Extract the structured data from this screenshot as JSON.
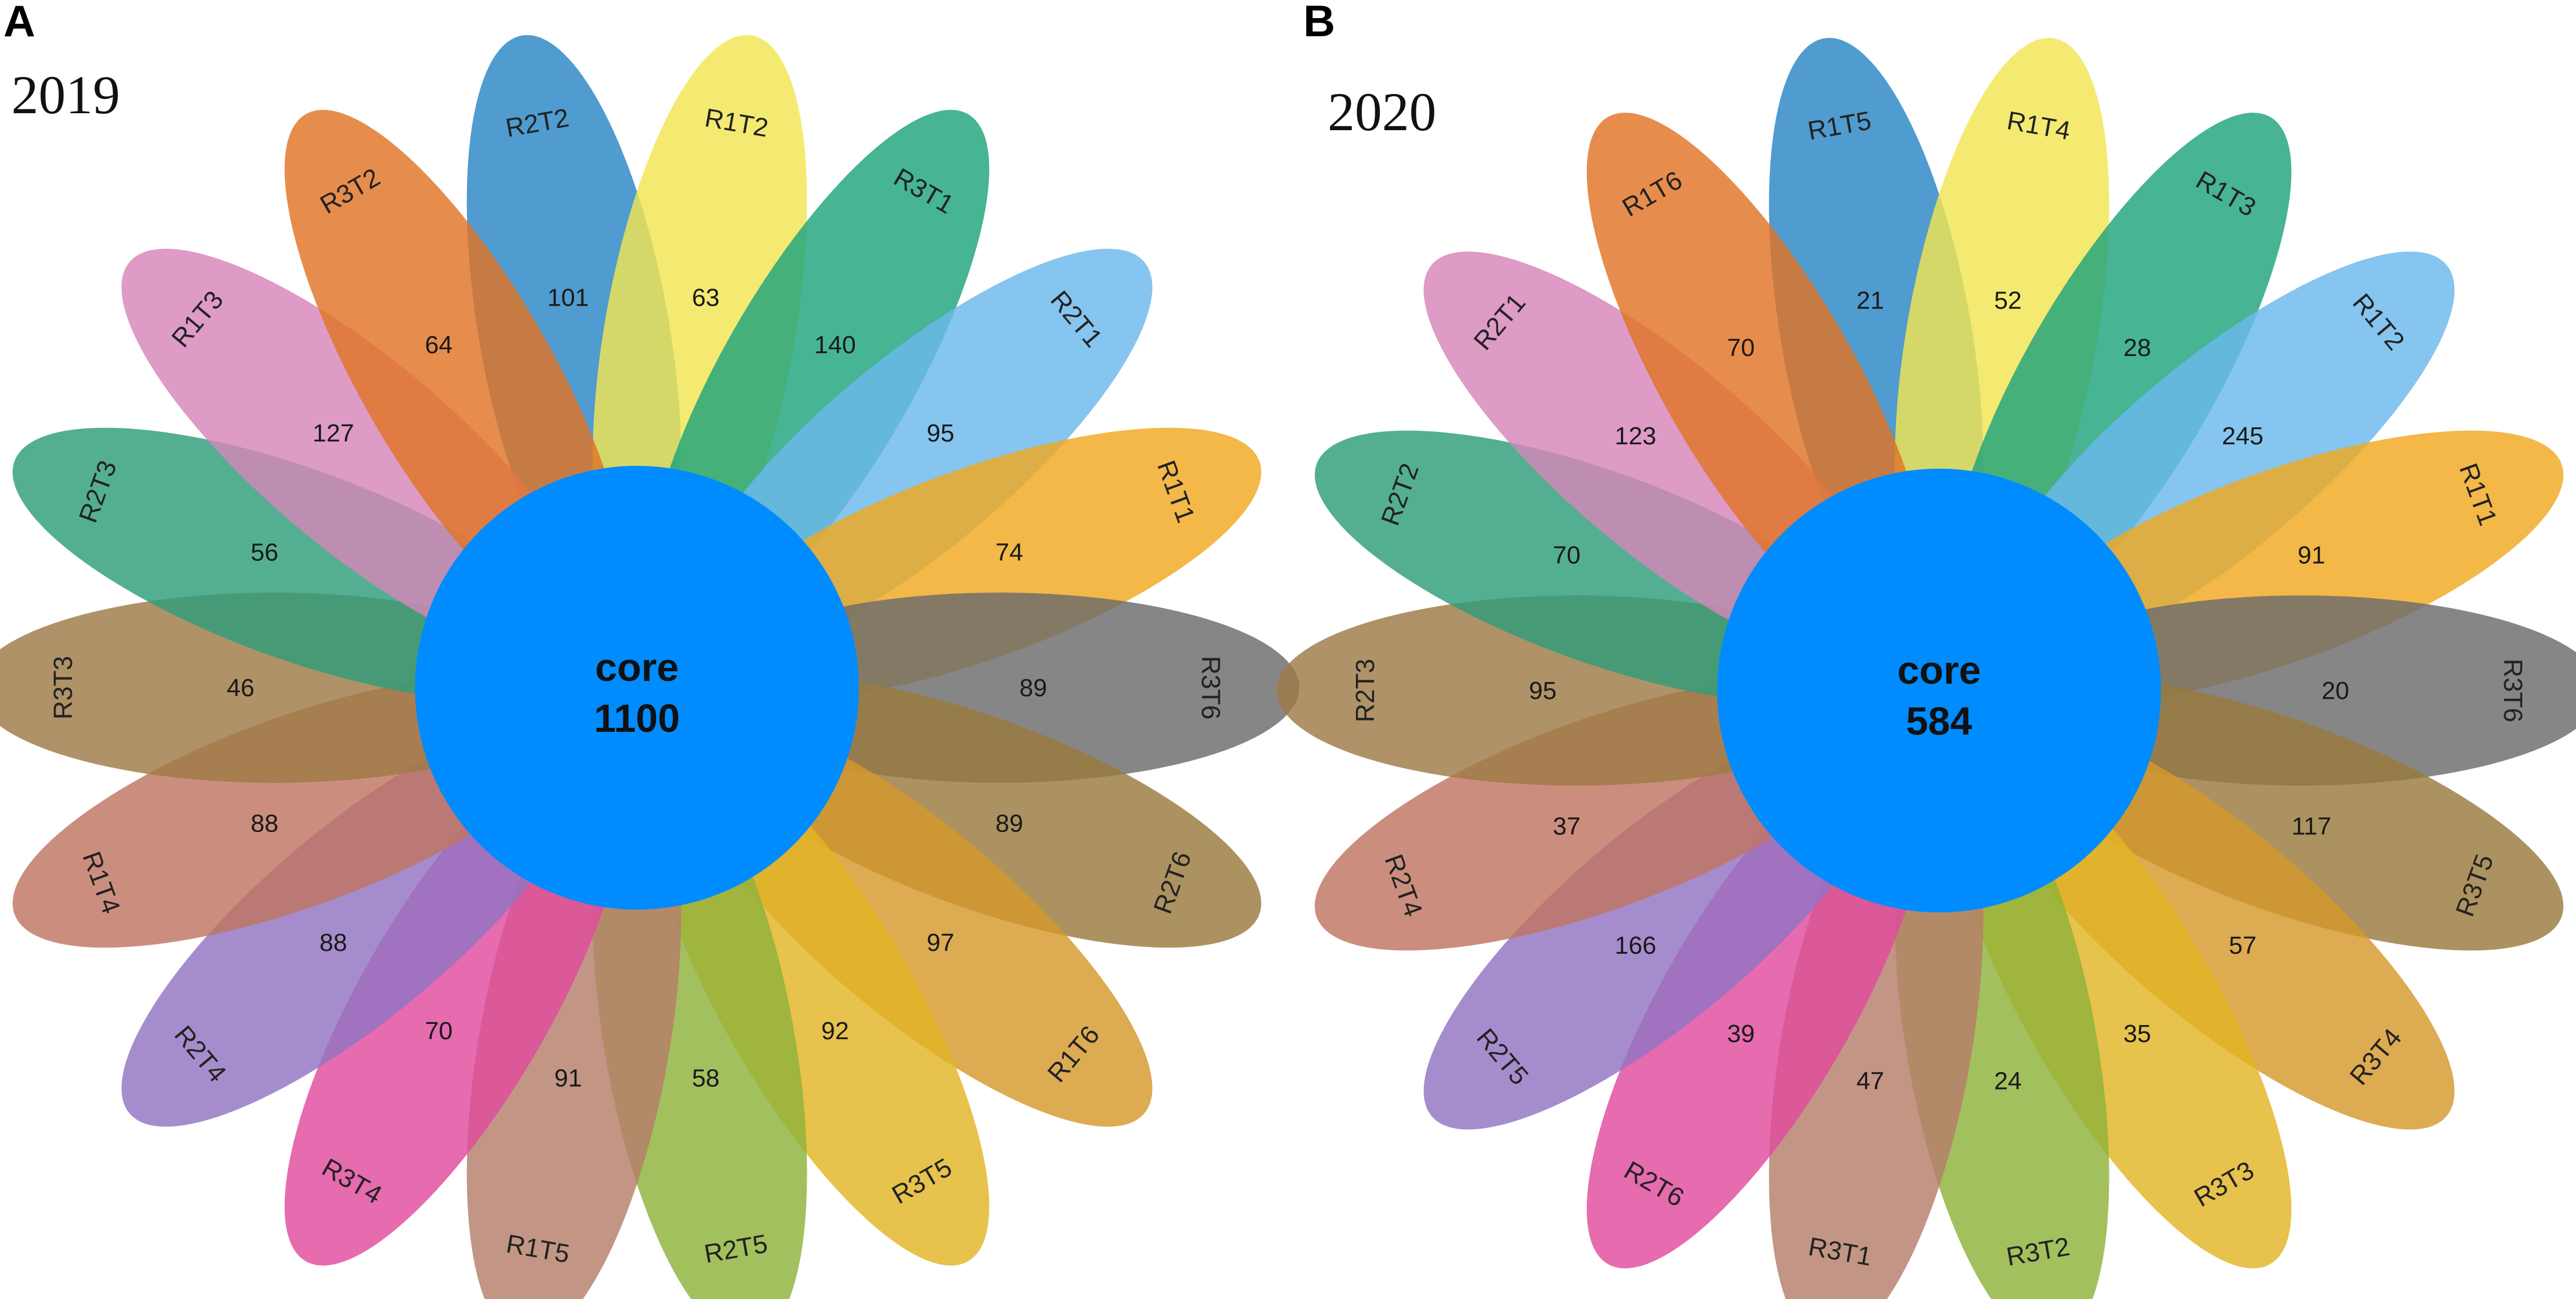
{
  "figure": {
    "panels": [
      {
        "letter": "A",
        "year": "2019",
        "core_label": "core",
        "core_value": "1100",
        "petals": [
          {
            "label": "R2T2",
            "value": "101",
            "color": "#2a85c4"
          },
          {
            "label": "R1T2",
            "value": "63",
            "color": "#f2e552"
          },
          {
            "label": "R3T1",
            "value": "140",
            "color": "#1fa37d"
          },
          {
            "label": "R2T1",
            "value": "95",
            "color": "#6ab8ec"
          },
          {
            "label": "R1T1",
            "value": "74",
            "color": "#f0a820"
          },
          {
            "label": "R3T6",
            "value": "89",
            "color": "#6b6b6b"
          },
          {
            "label": "R2T6",
            "value": "89",
            "color": "#9a7a3e"
          },
          {
            "label": "R1T6",
            "value": "97",
            "color": "#d4982c"
          },
          {
            "label": "R3T5",
            "value": "92",
            "color": "#e2b425"
          },
          {
            "label": "R2T5",
            "value": "58",
            "color": "#8fb23a"
          },
          {
            "label": "R1T5",
            "value": "91",
            "color": "#b67e6a"
          },
          {
            "label": "R3T4",
            "value": "70",
            "color": "#e04b9e"
          },
          {
            "label": "R2T4",
            "value": "88",
            "color": "#9174c2"
          },
          {
            "label": "R1T4",
            "value": "88",
            "color": "#c07561"
          },
          {
            "label": "R3T3",
            "value": "46",
            "color": "#9e7a45"
          },
          {
            "label": "R2T3",
            "value": "56",
            "color": "#2e9e7a"
          },
          {
            "label": "R1T3",
            "value": "127",
            "color": "#d585b9"
          },
          {
            "label": "R3T2",
            "value": "64",
            "color": "#e07426"
          }
        ]
      },
      {
        "letter": "B",
        "year": "2020",
        "core_label": "core",
        "core_value": "584",
        "petals": [
          {
            "label": "R1T5",
            "value": "21",
            "color": "#2a85c4"
          },
          {
            "label": "R1T4",
            "value": "52",
            "color": "#f2e552"
          },
          {
            "label": "R1T3",
            "value": "28",
            "color": "#1fa37d"
          },
          {
            "label": "R1T2",
            "value": "245",
            "color": "#6ab8ec"
          },
          {
            "label": "R1T1",
            "value": "91",
            "color": "#f0a820"
          },
          {
            "label": "R3T6",
            "value": "20",
            "color": "#6b6b6b"
          },
          {
            "label": "R3T5",
            "value": "117",
            "color": "#9a7a3e"
          },
          {
            "label": "R3T4",
            "value": "57",
            "color": "#d4982c"
          },
          {
            "label": "R3T3",
            "value": "35",
            "color": "#e2b425"
          },
          {
            "label": "R3T2",
            "value": "24",
            "color": "#8fb23a"
          },
          {
            "label": "R3T1",
            "value": "47",
            "color": "#b67e6a"
          },
          {
            "label": "R2T6",
            "value": "39",
            "color": "#e04b9e"
          },
          {
            "label": "R2T5",
            "value": "166",
            "color": "#9174c2"
          },
          {
            "label": "R2T4",
            "value": "37",
            "color": "#c07561"
          },
          {
            "label": "R2T3",
            "value": "95",
            "color": "#9e7a45"
          },
          {
            "label": "R2T2",
            "value": "70",
            "color": "#2e9e7a"
          },
          {
            "label": "R2T1",
            "value": "123",
            "color": "#d585b9"
          },
          {
            "label": "R1T6",
            "value": "70",
            "color": "#e07426"
          }
        ]
      }
    ],
    "core_color": "#008cff"
  }
}
